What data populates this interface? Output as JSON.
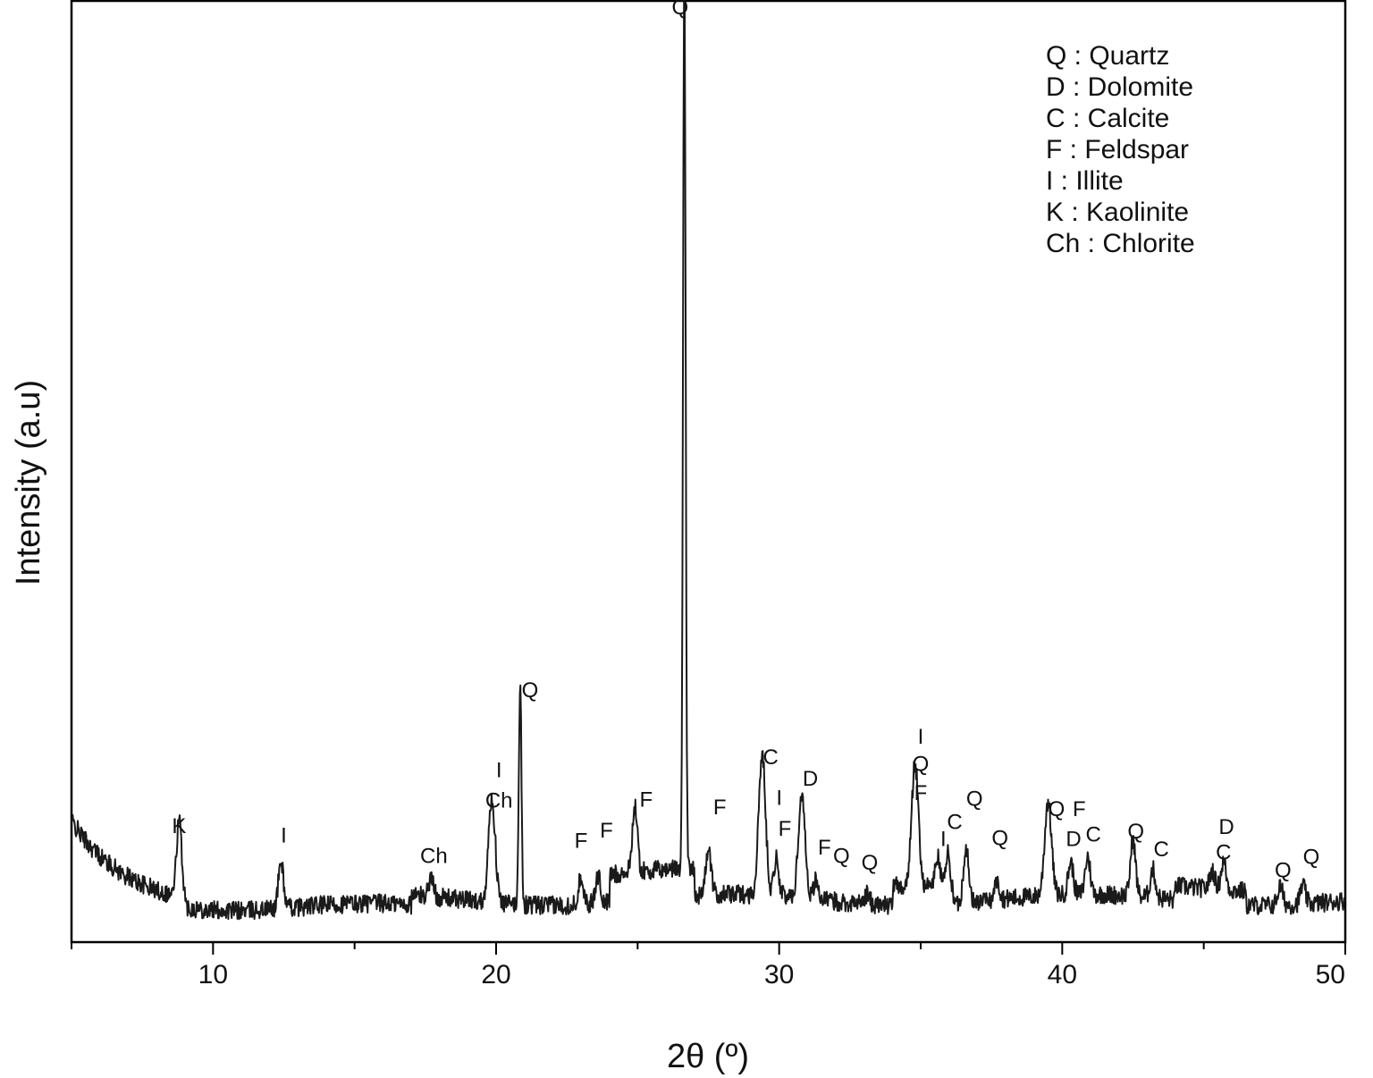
{
  "chart_data": {
    "type": "line",
    "xlabel": "2θ (º)",
    "ylabel": "Intensity (a.u)",
    "xlim": [
      5,
      50
    ],
    "ylim": [
      0,
      100
    ],
    "x_ticks": [
      10,
      20,
      30,
      40,
      50
    ],
    "x_tick_labels": [
      "10",
      "20",
      "30",
      "40",
      "50"
    ],
    "grid": false,
    "legend_position": "top-right",
    "legend": [
      "Q : Quartz",
      "D : Dolomite",
      "C : Calcite",
      "F : Feldspar",
      "I : Illite",
      "K : Kaolinite",
      "Ch : Chlorite"
    ],
    "peaks": [
      {
        "x": 8.8,
        "y": 8.0
      },
      {
        "x": 12.4,
        "y": 5.0
      },
      {
        "x": 17.7,
        "y": 2.0
      },
      {
        "x": 19.85,
        "y": 11.0
      },
      {
        "x": 20.85,
        "y": 24.0
      },
      {
        "x": 23.0,
        "y": 3.0
      },
      {
        "x": 23.6,
        "y": 3.0
      },
      {
        "x": 24.9,
        "y": 7.0
      },
      {
        "x": 26.65,
        "y": 96.0
      },
      {
        "x": 27.5,
        "y": 5.0
      },
      {
        "x": 29.4,
        "y": 15.0
      },
      {
        "x": 29.9,
        "y": 4.0
      },
      {
        "x": 30.8,
        "y": 11.0
      },
      {
        "x": 31.3,
        "y": 2.0
      },
      {
        "x": 33.1,
        "y": 1.0
      },
      {
        "x": 34.8,
        "y": 13.0
      },
      {
        "x": 35.6,
        "y": 3.0
      },
      {
        "x": 36.0,
        "y": 4.0
      },
      {
        "x": 36.6,
        "y": 6.0
      },
      {
        "x": 37.7,
        "y": 2.0
      },
      {
        "x": 39.5,
        "y": 10.0
      },
      {
        "x": 40.3,
        "y": 3.5
      },
      {
        "x": 40.9,
        "y": 4.0
      },
      {
        "x": 42.5,
        "y": 6.0
      },
      {
        "x": 43.2,
        "y": 3.0
      },
      {
        "x": 45.3,
        "y": 2.0
      },
      {
        "x": 45.7,
        "y": 3.0
      },
      {
        "x": 47.7,
        "y": 2.0
      },
      {
        "x": 48.5,
        "y": 2.0
      }
    ],
    "annotations": [
      {
        "text": "K",
        "x": 8.8,
        "y": 11.6
      },
      {
        "text": "I",
        "x": 12.5,
        "y": 10.6
      },
      {
        "text": "Ch",
        "x": 17.8,
        "y": 8.4
      },
      {
        "text": "Ch",
        "x": 20.1,
        "y": 14.3
      },
      {
        "text": "I",
        "x": 20.1,
        "y": 17.5
      },
      {
        "text": "Q",
        "x": 21.2,
        "y": 26.0
      },
      {
        "text": "F",
        "x": 23.0,
        "y": 10.0
      },
      {
        "text": "F",
        "x": 23.9,
        "y": 11.1
      },
      {
        "text": "F",
        "x": 25.3,
        "y": 14.4
      },
      {
        "text": "Q",
        "x": 26.5,
        "y": 98.6
      },
      {
        "text": "F",
        "x": 27.9,
        "y": 13.6
      },
      {
        "text": "C",
        "x": 29.7,
        "y": 18.9
      },
      {
        "text": "I",
        "x": 30.0,
        "y": 14.6
      },
      {
        "text": "F",
        "x": 30.2,
        "y": 11.3
      },
      {
        "text": "D",
        "x": 31.1,
        "y": 16.6
      },
      {
        "text": "F",
        "x": 31.6,
        "y": 9.3
      },
      {
        "text": "Q",
        "x": 32.2,
        "y": 8.4
      },
      {
        "text": "Q",
        "x": 33.2,
        "y": 7.7
      },
      {
        "text": "I",
        "x": 35.0,
        "y": 21.1
      },
      {
        "text": "Q",
        "x": 35.0,
        "y": 18.2
      },
      {
        "text": "F",
        "x": 35.0,
        "y": 15.1
      },
      {
        "text": "I",
        "x": 35.8,
        "y": 10.2
      },
      {
        "text": "C",
        "x": 36.2,
        "y": 12.0
      },
      {
        "text": "Q",
        "x": 36.9,
        "y": 14.5
      },
      {
        "text": "Q",
        "x": 37.8,
        "y": 10.3
      },
      {
        "text": "Q",
        "x": 39.8,
        "y": 13.4
      },
      {
        "text": "F",
        "x": 40.6,
        "y": 13.4
      },
      {
        "text": "D",
        "x": 40.4,
        "y": 10.2
      },
      {
        "text": "C",
        "x": 41.1,
        "y": 10.7
      },
      {
        "text": "Q",
        "x": 42.6,
        "y": 11.0
      },
      {
        "text": "C",
        "x": 43.5,
        "y": 9.1
      },
      {
        "text": "D",
        "x": 45.8,
        "y": 11.5
      },
      {
        "text": "C",
        "x": 45.7,
        "y": 8.8
      },
      {
        "text": "Q",
        "x": 47.8,
        "y": 6.9
      },
      {
        "text": "Q",
        "x": 48.8,
        "y": 8.3
      }
    ]
  }
}
